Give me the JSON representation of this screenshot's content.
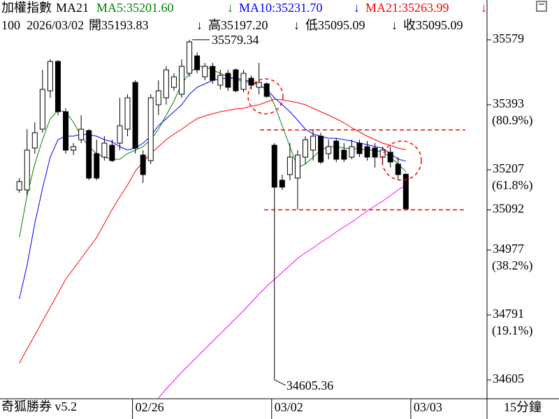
{
  "header": {
    "title": "加權指數",
    "ma_label": "MA21",
    "ma5": "MA5:35201.60",
    "ma10": "MA10:35231.70",
    "ma21": "MA21:35263.99",
    "arrow": "↓",
    "count": "100",
    "date": "2026/03/02",
    "open": "開35193.83",
    "high": "高35197.20",
    "low": "低35095.09",
    "close": "收35095.09"
  },
  "chart_data": {
    "type": "candlestick",
    "candles": [
      [
        35149,
        35183,
        35141,
        35173
      ],
      [
        35149,
        35323,
        35133,
        35263
      ],
      [
        35269,
        35343,
        35253,
        35313
      ],
      [
        35323,
        35493,
        35313,
        35437
      ],
      [
        35433,
        35523,
        35413,
        35517
      ],
      [
        35517,
        35521,
        35363,
        35373
      ],
      [
        35373,
        35383,
        35253,
        35263
      ],
      [
        35263,
        35283,
        35249,
        35273
      ],
      [
        35293,
        35363,
        35283,
        35323
      ],
      [
        35319,
        35323,
        35177,
        35183
      ],
      [
        35253,
        35293,
        35177,
        35183
      ],
      [
        35243,
        35303,
        35233,
        35283
      ],
      [
        35277,
        35293,
        35229,
        35233
      ],
      [
        35283,
        35413,
        35263,
        35333
      ],
      [
        35323,
        35423,
        35303,
        35413
      ],
      [
        35457,
        35463,
        35253,
        35269
      ],
      [
        35249,
        35263,
        35169,
        35193
      ],
      [
        35233,
        35423,
        35223,
        35413
      ],
      [
        35393,
        35463,
        35363,
        35433
      ],
      [
        35413,
        35503,
        35393,
        35493
      ],
      [
        35443,
        35483,
        35433,
        35473
      ],
      [
        35423,
        35523,
        35413,
        35503
      ],
      [
        35483,
        35579.34,
        35473,
        35573
      ],
      [
        35533,
        35543,
        35483,
        35493
      ],
      [
        35473,
        35513,
        35463,
        35503
      ],
      [
        35503,
        35513,
        35453,
        35463
      ],
      [
        35449,
        35493,
        35437,
        35477
      ],
      [
        35483,
        35493,
        35433,
        35443
      ],
      [
        35493,
        35497,
        35429,
        35433
      ],
      [
        35437,
        35493,
        35429,
        35483
      ],
      [
        35469,
        35477,
        35437,
        35449
      ],
      [
        35443,
        35513,
        35423,
        35457
      ],
      [
        35453,
        35457,
        35413,
        35417
      ],
      [
        35277,
        35283,
        34605.36,
        35157
      ],
      [
        35177,
        35193,
        35149,
        35157
      ],
      [
        35193,
        35283,
        35177,
        35243
      ],
      [
        35183,
        35263,
        35093,
        35249
      ],
      [
        35243,
        35303,
        35223,
        35293
      ],
      [
        35263,
        35323,
        35233,
        35303
      ],
      [
        35303,
        35313,
        35223,
        35229
      ],
      [
        35253,
        35293,
        35237,
        35273
      ],
      [
        35289,
        35297,
        35229,
        35237
      ],
      [
        35263,
        35283,
        35229,
        35237
      ],
      [
        35243,
        35293,
        35237,
        35273
      ],
      [
        35283,
        35293,
        35243,
        35253
      ],
      [
        35273,
        35289,
        35233,
        35243
      ],
      [
        35269,
        35283,
        35213,
        35243
      ],
      [
        35243,
        35273,
        35223,
        35263
      ],
      [
        35257,
        35273,
        35213,
        35229
      ],
      [
        35223,
        35243,
        35177,
        35193
      ],
      [
        35193.83,
        35197.2,
        35095.09,
        35095.09
      ]
    ],
    "series": [
      {
        "name": "MA5",
        "color": "#008000",
        "values": [
          35013,
          35133,
          35223,
          35293,
          35353,
          35377,
          35373,
          35343,
          35303,
          35273,
          35253,
          35243,
          35237,
          35237,
          35253,
          35263,
          35273,
          35293,
          35323,
          35363,
          35403,
          35453,
          35483,
          35503,
          35503,
          35493,
          35483,
          35473,
          35467,
          35459,
          35457,
          35449,
          35437,
          35393,
          35333,
          35273,
          35213,
          35223,
          35243,
          35263,
          35273,
          35273,
          35269,
          35267,
          35267,
          35263,
          35263,
          35257,
          35243,
          35223,
          35201.6
        ]
      },
      {
        "name": "MA10",
        "color": "#0000ff",
        "values": [
          34837,
          34933,
          35053,
          35153,
          35243,
          35293,
          35303,
          35303,
          35309,
          35307,
          35303,
          35293,
          35287,
          35273,
          35263,
          35269,
          35283,
          35303,
          35333,
          35353,
          35373,
          35393,
          35423,
          35443,
          35453,
          35463,
          35467,
          35469,
          35469,
          35465,
          35459,
          35449,
          35437,
          35413,
          35393,
          35373,
          35349,
          35323,
          35309,
          35303,
          35297,
          35297,
          35293,
          35289,
          35283,
          35279,
          35273,
          35269,
          35253,
          35237,
          35231.7
        ]
      },
      {
        "name": "MA21",
        "color": "#ff0000",
        "values": [
          34653,
          34693,
          34733,
          34773,
          34813,
          34853,
          34893,
          34923,
          34953,
          34983,
          35013,
          35053,
          35093,
          35129,
          35163,
          35203,
          35229,
          35253,
          35273,
          35293,
          35309,
          35323,
          35339,
          35353,
          35361,
          35367,
          35373,
          35377,
          35381,
          35383,
          35389,
          35393,
          35401,
          35409,
          35407,
          35403,
          35399,
          35393,
          35383,
          35373,
          35363,
          35353,
          35341,
          35327,
          35315,
          35303,
          35293,
          35283,
          35277,
          35269,
          35263.99
        ]
      },
      {
        "color": "#ff00ff",
        "values": [
          null,
          null,
          null,
          null,
          null,
          null,
          null,
          null,
          null,
          null,
          null,
          null,
          null,
          null,
          null,
          null,
          null,
          null,
          34553,
          34579,
          34603,
          34627,
          34649,
          34671,
          34693,
          34715,
          34737,
          34759,
          34781,
          34803,
          34827,
          34851,
          34873,
          34893,
          34913,
          34933,
          34953,
          34969,
          34983,
          34999,
          35013,
          35029,
          35043,
          35057,
          35073,
          35089,
          35103,
          35117,
          35133,
          35149,
          35163
        ]
      }
    ],
    "ylim": [
      34553,
      35693
    ],
    "yticks": [
      35579,
      35393,
      35207,
      35092,
      34977,
      34791,
      34605
    ],
    "fib_labels": [
      {
        "value": 35393,
        "label": "(80.9%)"
      },
      {
        "value": 35207,
        "label": "(61.8%)"
      },
      {
        "value": 34977,
        "label": "(38.2%)"
      },
      {
        "value": 34791,
        "label": "(19.1%)"
      }
    ],
    "xlim": [
      -2.5,
      60.5
    ],
    "xticks": [
      {
        "value": 15,
        "label": "02/26"
      },
      {
        "value": 33,
        "label": "03/02"
      },
      {
        "value": 51,
        "label": "03/03"
      }
    ],
    "hlines": [
      35321,
      35092
    ],
    "hline_color": "#ff0000",
    "annotations": [
      "35579.34",
      "34605.36"
    ],
    "up_color": "#ffffff",
    "down_color": "#000000"
  },
  "footer": {
    "app": "奇狐勝券 v5.2",
    "period": "15分鐘"
  }
}
